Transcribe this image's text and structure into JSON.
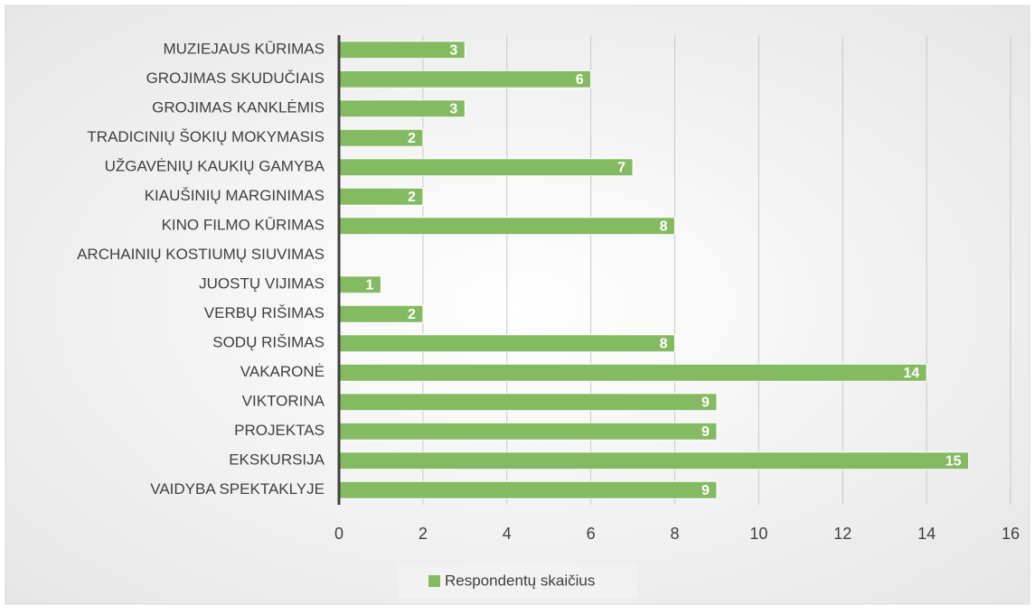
{
  "chart_data": {
    "type": "bar",
    "orientation": "horizontal",
    "categories": [
      "MUZIEJAUS KŪRIMAS",
      "GROJIMAS SKUDUČIAIS",
      "GROJIMAS KANKLĖMIS",
      "TRADICINIŲ ŠOKIŲ MOKYMASIS",
      "UŽGAVĖNIŲ KAUKIŲ GAMYBA",
      "KIAUŠINIŲ MARGINIMAS",
      "KINO FILMO KŪRIMAS",
      "ARCHAINIŲ KOSTIUMŲ SIUVIMAS",
      "JUOSTŲ VIJIMAS",
      "VERBŲ RIŠIMAS",
      "SODŲ RIŠIMAS",
      "VAKARONĖ",
      "VIKTORINA",
      "PROJEKTAS",
      "EKSKURSIJA",
      "VAIDYBA SPEKTAKLYJE"
    ],
    "series": [
      {
        "name": "Respondentų skaičius",
        "color": "#84bb62",
        "values": [
          3,
          6,
          3,
          2,
          7,
          2,
          8,
          null,
          1,
          2,
          8,
          14,
          9,
          9,
          15,
          9
        ]
      }
    ],
    "xlim": [
      0,
      16
    ],
    "xticks": [
      0,
      2,
      4,
      6,
      8,
      10,
      12,
      14,
      16
    ],
    "grid": true,
    "legend": "bottom"
  }
}
